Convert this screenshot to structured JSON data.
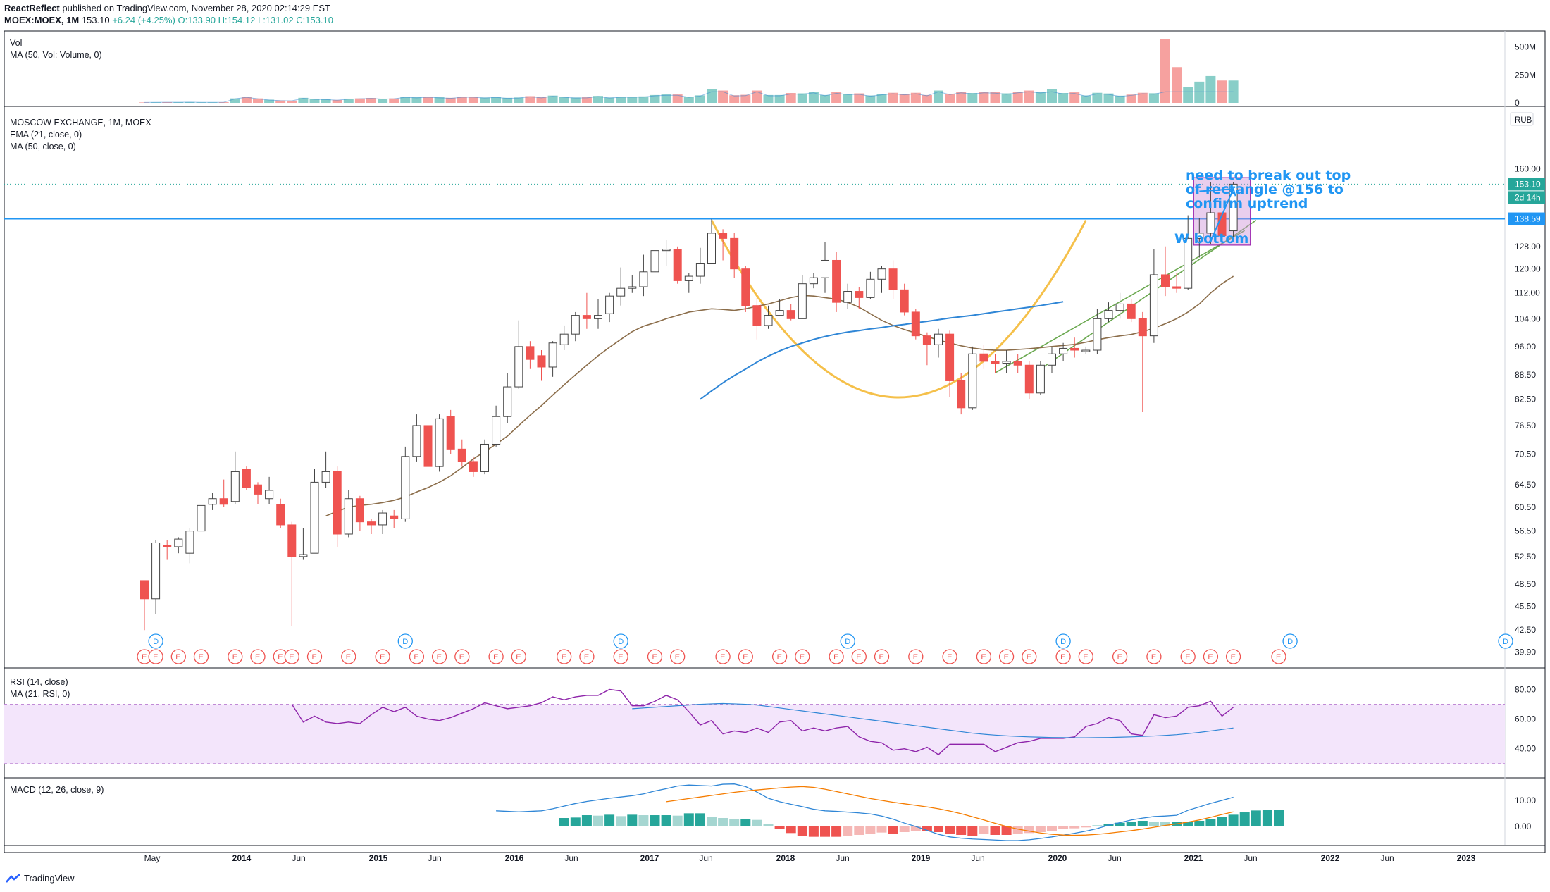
{
  "header": {
    "publisher": "ReactReflect",
    "published_text": "published on TradingView.com, November 28, 2020 02:14:29 EST",
    "symbol": "MOEX:MOEX, 1M",
    "last": "153.10",
    "change": "+6.24 (+4.25%)",
    "ohlc": {
      "o": "O:133.90",
      "h": "H:154.12",
      "l": "L:131.02",
      "c": "C:153.10"
    }
  },
  "panes": {
    "volume": {
      "title": "Vol",
      "study": "MA (50, Vol: Volume, 0)",
      "ticks": [
        "500M",
        "250M",
        "0"
      ]
    },
    "price": {
      "title": "MOSCOW EXCHANGE, 1M, MOEX",
      "study1": "EMA (21, close, 0)",
      "study2": "MA (50, close, 0)",
      "currency": "RUB"
    },
    "rsi": {
      "title": "RSI (14, close)",
      "study": "MA (21, RSI, 0)",
      "ticks": [
        "80.00",
        "60.00",
        "40.00"
      ]
    },
    "macd": {
      "title": "MACD (12, 26, close, 9)",
      "ticks": [
        "10.00",
        "0.00"
      ]
    }
  },
  "annotations": {
    "note": "need to break out top of rectangle @156 to confirm uptrend",
    "w_bottom": "W bottom",
    "last_price_label": "153.10",
    "countdown": "2d 14h",
    "hline_label": "138.59"
  },
  "footer": {
    "brand": "TradingView"
  },
  "colors": {
    "up": "#26a69a",
    "down": "#ef5350",
    "ema": "#8b6d4a",
    "ma": "#2f86d6",
    "curve": "#f5c04a",
    "trend": "#6aa84f",
    "rsi": "#8e24aa",
    "rsi_band": "#f3e5fb",
    "macd": "#2f86d6",
    "signal": "#f57c00",
    "hline": "#2196f3",
    "rect": "#ce93d8"
  },
  "chart_data": {
    "type": "candlestick",
    "title": "MOSCOW EXCHANGE, 1M, MOEX",
    "y_scale": "log",
    "ylim": [
      38.5,
      188
    ],
    "price_ticks": [
      160.0,
      138.0,
      128.0,
      120.0,
      112.0,
      104.0,
      96.0,
      88.5,
      82.5,
      76.5,
      70.5,
      64.5,
      60.5,
      56.5,
      52.5,
      48.5,
      45.5,
      42.5,
      39.9
    ],
    "time_labels": [
      "May",
      "2014",
      "Jun",
      "2015",
      "Jun",
      "2016",
      "Jun",
      "2017",
      "Jun",
      "2018",
      "Jun",
      "2019",
      "Jun",
      "2020",
      "Jun",
      "2021",
      "Jun",
      "2022",
      "Jun",
      "2023"
    ],
    "start_label": "2013-02",
    "candles": [
      [
        49.0,
        46.5,
        42.5,
        49.0
      ],
      [
        46.5,
        54.6,
        44.5,
        55.0
      ],
      [
        54.2,
        54.0,
        52.0,
        55.0
      ],
      [
        54.0,
        55.2,
        53.0,
        55.5
      ],
      [
        53.0,
        56.5,
        51.5,
        57.0
      ],
      [
        56.5,
        60.8,
        55.5,
        62.0
      ],
      [
        61.0,
        62.0,
        60.0,
        63.0
      ],
      [
        62.0,
        61.0,
        60.5,
        65.5
      ],
      [
        61.5,
        67.0,
        61.0,
        71.0
      ],
      [
        67.5,
        64.0,
        63.5,
        68.0
      ],
      [
        64.5,
        62.8,
        61.0,
        65.0
      ],
      [
        62.0,
        63.5,
        61.0,
        66.0
      ],
      [
        61.0,
        57.5,
        57.0,
        62.0
      ],
      [
        57.5,
        52.5,
        43.0,
        58.0
      ],
      [
        52.5,
        52.8,
        52.0,
        57.0
      ],
      [
        53.0,
        65.0,
        53.0,
        67.5
      ],
      [
        65.0,
        67.0,
        64.0,
        71.0
      ],
      [
        67.0,
        56.0,
        54.0,
        68.0
      ],
      [
        56.0,
        62.0,
        55.5,
        63.5
      ],
      [
        62.0,
        58.0,
        56.5,
        62.5
      ],
      [
        58.0,
        57.5,
        56.0,
        58.5
      ],
      [
        57.5,
        59.5,
        56.0,
        60.0
      ],
      [
        59.0,
        58.5,
        57.0,
        60.0
      ],
      [
        58.5,
        70.0,
        58.0,
        72.0
      ],
      [
        70.0,
        76.5,
        69.0,
        79.0
      ],
      [
        76.5,
        68.0,
        67.5,
        78.0
      ],
      [
        68.0,
        78.0,
        67.0,
        79.0
      ],
      [
        78.5,
        71.5,
        70.5,
        80.0
      ],
      [
        71.5,
        69.0,
        68.0,
        73.5
      ],
      [
        69.0,
        67.0,
        66.0,
        70.0
      ],
      [
        67.0,
        72.5,
        66.5,
        73.5
      ],
      [
        72.5,
        78.5,
        72.0,
        81.0
      ],
      [
        78.5,
        85.5,
        77.0,
        89.0
      ],
      [
        85.5,
        96.0,
        85.0,
        103.5
      ],
      [
        96.0,
        92.5,
        90.0,
        97.5
      ],
      [
        93.5,
        90.5,
        87.0,
        95.0
      ],
      [
        90.5,
        97.0,
        88.0,
        97.5
      ],
      [
        96.5,
        99.5,
        95.0,
        102.0
      ],
      [
        99.5,
        105.0,
        97.5,
        106.0
      ],
      [
        105.0,
        104.0,
        101.0,
        112.0
      ],
      [
        104.0,
        105.0,
        101.0,
        110.0
      ],
      [
        105.5,
        111.0,
        103.0,
        112.0
      ],
      [
        111.0,
        113.5,
        108.0,
        120.5
      ],
      [
        113.5,
        114.0,
        112.0,
        118.0
      ],
      [
        114.0,
        119.0,
        111.0,
        125.0
      ],
      [
        119.0,
        126.5,
        118.0,
        131.0
      ],
      [
        126.5,
        127.0,
        121.0,
        130.5
      ],
      [
        127.0,
        116.0,
        115.0,
        128.0
      ],
      [
        116.0,
        117.5,
        112.0,
        118.5
      ],
      [
        117.5,
        122.0,
        115.0,
        127.5
      ],
      [
        122.0,
        133.0,
        122.0,
        138.5
      ],
      [
        133.0,
        131.0,
        123.0,
        134.5
      ],
      [
        131.0,
        120.0,
        117.0,
        133.0
      ],
      [
        120.0,
        108.0,
        106.0,
        121.0
      ],
      [
        108.0,
        102.0,
        98.0,
        110.5
      ],
      [
        102.0,
        105.0,
        101.0,
        108.0
      ],
      [
        105.0,
        106.5,
        105.0,
        110.0
      ],
      [
        106.5,
        104.0,
        103.5,
        108.5
      ],
      [
        104.0,
        115.0,
        104.0,
        118.0
      ],
      [
        115.0,
        117.0,
        113.5,
        118.5
      ],
      [
        117.0,
        123.0,
        112.0,
        129.5
      ],
      [
        123.0,
        109.0,
        106.0,
        126.0
      ],
      [
        109.0,
        112.5,
        107.0,
        115.0
      ],
      [
        112.5,
        110.5,
        107.0,
        114.0
      ],
      [
        110.5,
        116.5,
        110.0,
        119.0
      ],
      [
        116.5,
        120.0,
        112.0,
        121.0
      ],
      [
        120.0,
        113.0,
        110.0,
        123.0
      ],
      [
        113.0,
        106.0,
        105.0,
        115.0
      ],
      [
        106.0,
        99.0,
        98.0,
        107.0
      ],
      [
        99.0,
        96.5,
        91.0,
        100.0
      ],
      [
        96.5,
        99.5,
        93.0,
        101.0
      ],
      [
        99.5,
        87.0,
        83.0,
        100.5
      ],
      [
        87.0,
        80.5,
        79.0,
        89.0
      ],
      [
        80.5,
        94.0,
        80.0,
        96.0
      ],
      [
        94.0,
        92.0,
        90.0,
        96.5
      ],
      [
        92.0,
        91.5,
        89.0,
        94.0
      ],
      [
        91.5,
        92.0,
        89.0,
        95.0
      ],
      [
        92.0,
        91.0,
        89.0,
        94.0
      ],
      [
        91.0,
        84.0,
        82.5,
        92.0
      ],
      [
        84.0,
        91.0,
        83.5,
        92.0
      ],
      [
        91.0,
        94.0,
        89.0,
        96.0
      ],
      [
        94.0,
        95.5,
        92.0,
        97.0
      ],
      [
        95.5,
        95.0,
        93.0,
        98.5
      ],
      [
        95.0,
        95.0,
        94.0,
        96.0
      ],
      [
        95.0,
        104.0,
        94.0,
        107.0
      ],
      [
        104.0,
        106.5,
        103.0,
        109.0
      ],
      [
        106.5,
        108.5,
        104.0,
        112.0
      ],
      [
        108.5,
        104.0,
        103.0,
        110.0
      ],
      [
        104.0,
        99.0,
        79.5,
        106.0
      ],
      [
        99.0,
        118.0,
        97.0,
        127.0
      ],
      [
        118.0,
        114.0,
        111.0,
        128.0
      ],
      [
        114.0,
        113.5,
        112.0,
        118.5
      ],
      [
        113.5,
        131.0,
        113.0,
        140.0
      ],
      [
        131.0,
        133.0,
        124.0,
        139.0
      ],
      [
        133.0,
        141.0,
        129.0,
        154.0
      ],
      [
        141.0,
        132.0,
        130.0,
        146.0
      ],
      [
        133.9,
        153.1,
        131.0,
        154.1
      ]
    ],
    "ema21": [
      59.0,
      59.8,
      60.5,
      60.8,
      61.0,
      61.3,
      61.7,
      62.3,
      63.2,
      64.0,
      65.0,
      66.2,
      67.8,
      69.5,
      71.0,
      72.5,
      74.2,
      76.5,
      78.8,
      81.0,
      83.5,
      86.0,
      88.5,
      91.0,
      93.5,
      95.8,
      98.0,
      100.2,
      101.8,
      102.8,
      104.0,
      105.0,
      106.0,
      106.5,
      107.0,
      106.8,
      106.5,
      107.0,
      107.8,
      108.5,
      109.5,
      110.5,
      111.2,
      111.0,
      110.5,
      110.0,
      109.0,
      107.5,
      105.5,
      103.5,
      102.0,
      100.8,
      99.8,
      98.8,
      97.8,
      97.0,
      96.2,
      95.6,
      95.2,
      95.0,
      95.0,
      95.2,
      95.4,
      95.7,
      96.0,
      96.3,
      96.6,
      97.2,
      97.9,
      98.5,
      99.0,
      99.4,
      100.2,
      101.2,
      102.5,
      104.0,
      106.0,
      108.5,
      112.0,
      115.0,
      117.5
    ],
    "ema21_start": 16,
    "ma50": [
      82.5,
      84.5,
      86.5,
      88.3,
      90.0,
      91.8,
      93.4,
      94.8,
      96.0,
      97.0,
      98.0,
      98.8,
      99.5,
      100.1,
      100.5,
      101.0,
      101.4,
      101.9,
      102.3,
      102.8,
      103.2,
      103.7,
      104.2,
      104.6,
      105.0,
      105.5,
      106.0,
      106.5,
      107.0,
      107.5,
      108.0,
      108.6,
      109.2
    ],
    "ma50_start": 49,
    "volume_m": [
      4,
      5,
      6,
      6,
      7,
      5,
      5,
      6,
      40,
      55,
      40,
      28,
      22,
      20,
      45,
      35,
      32,
      26,
      38,
      40,
      44,
      38,
      40,
      55,
      50,
      56,
      50,
      45,
      56,
      56,
      48,
      54,
      45,
      48,
      60,
      50,
      65,
      55,
      48,
      50,
      62,
      48,
      56,
      56,
      58,
      70,
      75,
      75,
      55,
      67,
      125,
      110,
      68,
      72,
      110,
      70,
      70,
      88,
      85,
      100,
      70,
      95,
      82,
      85,
      66,
      80,
      90,
      80,
      90,
      70,
      110,
      82,
      100,
      88,
      100,
      96,
      85,
      100,
      110,
      98,
      120,
      88,
      94,
      66,
      90,
      84,
      64,
      74,
      90,
      86,
      570,
      320,
      140,
      190,
      240,
      200,
      200
    ],
    "rsi": [
      70,
      58,
      62,
      58,
      57,
      58,
      57,
      63,
      68,
      65,
      68,
      62,
      60,
      59,
      61,
      64,
      67,
      71,
      69,
      67,
      68,
      69,
      71,
      75,
      73,
      75,
      76,
      76,
      80,
      79,
      69,
      69,
      72,
      76,
      73,
      65,
      56,
      59,
      50,
      52,
      51,
      54,
      51,
      58,
      59,
      52,
      54,
      52,
      54,
      55,
      48,
      45,
      44,
      39,
      40,
      38,
      41,
      36,
      43,
      43,
      43,
      43,
      38,
      41,
      44,
      45,
      47,
      47,
      47,
      48,
      55,
      57,
      61,
      59,
      50,
      49,
      63,
      61,
      62,
      68,
      69,
      72,
      62,
      68
    ],
    "rsi_start": 13,
    "rsi_ma": [
      67,
      67.5,
      68,
      68.5,
      69,
      69.5,
      70,
      70.3,
      70.5,
      70.3,
      70,
      69.5,
      68.5,
      67.5,
      66.5,
      65.5,
      64.5,
      63.5,
      62.5,
      61.5,
      60.5,
      59.5,
      58.5,
      57.5,
      56.5,
      55.5,
      54.5,
      53.5,
      52.5,
      51.5,
      50.5,
      49.8,
      49.2,
      48.7,
      48.3,
      48.0,
      47.8,
      47.6,
      47.5,
      47.4,
      47.4,
      47.5,
      47.6,
      47.8,
      48.0,
      48.3,
      48.6,
      49.0,
      49.5,
      50.2,
      51.0,
      52.0,
      53.0,
      54.0
    ],
    "rsi_ma_start": 43,
    "macd": [
      6.0,
      5.8,
      5.6,
      5.8,
      6.0,
      6.8,
      7.8,
      8.8,
      9.6,
      10.2,
      10.8,
      11.3,
      11.8,
      12.5,
      13.6,
      14.5,
      15.5,
      15.9,
      15.7,
      15.5,
      16.2,
      16.3,
      15.3,
      13.2,
      10.8,
      9.5,
      8.5,
      7.6,
      6.6,
      6.0,
      5.8,
      5.5,
      5.2,
      4.8,
      4.0,
      2.8,
      1.3,
      0.0,
      -1.5,
      -3.0,
      -4.0,
      -4.5,
      -4.8,
      -5.0,
      -5.2,
      -5.4,
      -5.4,
      -5.1,
      -4.6,
      -4.0,
      -3.3,
      -2.6,
      -1.8,
      -0.8,
      0.5,
      1.5,
      2.5,
      3.2,
      3.8,
      4.0,
      4.3,
      6.2,
      7.5,
      8.9,
      10.0,
      11.2
    ],
    "macd_start": 31,
    "macd_signal": [
      9.5,
      10.1,
      10.7,
      11.3,
      11.9,
      12.5,
      13.1,
      13.6,
      14.0,
      14.4,
      14.8,
      15.1,
      15.3,
      15.0,
      14.3,
      13.4,
      12.5,
      11.6,
      10.7,
      10.0,
      9.3,
      8.7,
      8.1,
      7.5,
      6.8,
      5.9,
      4.9,
      3.7,
      2.5,
      1.2,
      0.0,
      -1.0,
      -1.8,
      -2.5,
      -3.0,
      -3.3,
      -3.4,
      -3.3,
      -3.0,
      -2.6,
      -2.1,
      -1.6,
      -1.0,
      -0.3,
      0.4,
      1.0,
      1.7,
      2.5,
      3.5,
      4.6,
      5.6
    ],
    "macd_signal_start": 46,
    "macd_hist": [
      1.8,
      1.9,
      2.4,
      2.3,
      2.5,
      2.2,
      2.5,
      2.4,
      2.4,
      2.4,
      2.3,
      2.8,
      2.8,
      2.0,
      1.8,
      1.5,
      1.6,
      1.4,
      0.6,
      -0.6,
      -1.4,
      -2.0,
      -2.2,
      -2.2,
      -2.2,
      -2.0,
      -1.8,
      -1.6,
      -1.3,
      -1.6,
      -1.2,
      -1.0,
      -1.0,
      -1.2,
      -1.5,
      -1.8,
      -2.0,
      -1.6,
      -1.8,
      -1.8,
      -1.6,
      -1.4,
      -1.2,
      -0.9,
      -0.6,
      -0.4,
      -0.2,
      0.2,
      0.5,
      0.8,
      1.0,
      1.2,
      1.0,
      0.9,
      1.0,
      1.0,
      1.2,
      1.5,
      2.0,
      2.5,
      3.0,
      3.4,
      3.5,
      3.5
    ],
    "macd_hist_start": 37,
    "hline": 138.59,
    "box": {
      "from_index": 93,
      "to_index": 97,
      "low": 128.5,
      "high": 156.0
    }
  }
}
